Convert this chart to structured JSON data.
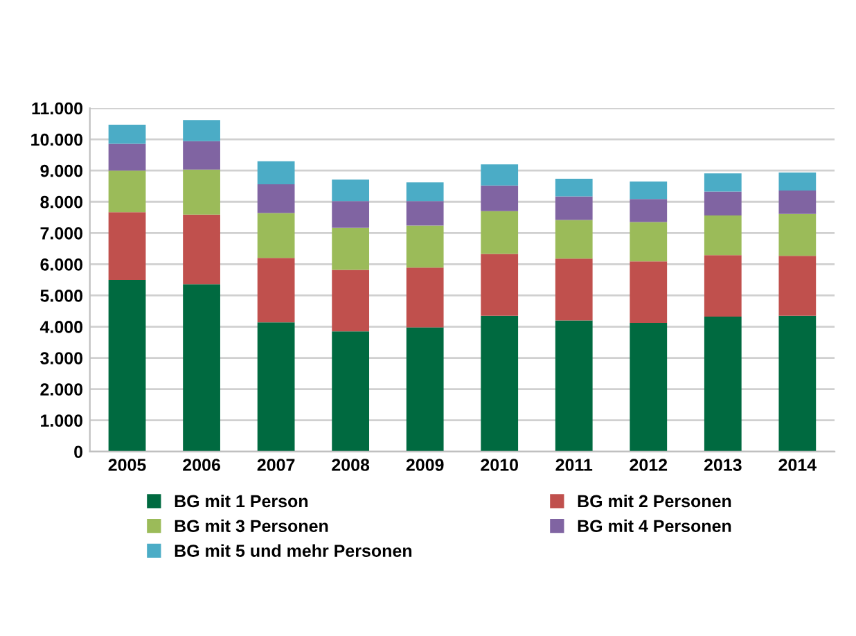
{
  "chart_data": {
    "type": "bar",
    "stacked": true,
    "categories": [
      "2005",
      "2006",
      "2007",
      "2008",
      "2009",
      "2010",
      "2011",
      "2012",
      "2013",
      "2014"
    ],
    "series": [
      {
        "name": "BG mit 1 Person",
        "color": "#006a40",
        "values": [
          5500,
          5360,
          4140,
          3850,
          3980,
          4350,
          4200,
          4120,
          4320,
          4350
        ]
      },
      {
        "name": "BG mit 2 Personen",
        "color": "#c0504d",
        "values": [
          2170,
          2230,
          2060,
          1970,
          1910,
          1980,
          1980,
          1970,
          1970,
          1920
        ]
      },
      {
        "name": "BG mit 3 Personen",
        "color": "#9bbb59",
        "values": [
          1330,
          1440,
          1440,
          1350,
          1350,
          1370,
          1240,
          1260,
          1270,
          1340
        ]
      },
      {
        "name": "BG mit 4 Personen",
        "color": "#8064a2",
        "values": [
          860,
          910,
          920,
          850,
          780,
          820,
          750,
          740,
          770,
          750
        ]
      },
      {
        "name": "BG mit 5 und mehr Personen",
        "color": "#4bacc6",
        "values": [
          610,
          680,
          740,
          690,
          600,
          680,
          570,
          560,
          580,
          580
        ]
      }
    ],
    "ylim": [
      0,
      11000
    ],
    "yticks": [
      0,
      {
        "value": 1000,
        "label": "1.000"
      },
      {
        "value": 2000,
        "label": "2.000"
      },
      {
        "value": 3000,
        "label": "3.000"
      },
      {
        "value": 4000,
        "label": "4.000"
      },
      {
        "value": 5000,
        "label": "5.000"
      },
      {
        "value": 6000,
        "label": "6.000"
      },
      {
        "value": 7000,
        "label": "7.000"
      },
      {
        "value": 8000,
        "label": "8.000"
      },
      {
        "value": 9000,
        "label": "9.000"
      },
      {
        "value": 10000,
        "label": "10.000"
      },
      {
        "value": 11000,
        "label": "11.000"
      }
    ],
    "grid": "y",
    "legend": "bottom"
  }
}
